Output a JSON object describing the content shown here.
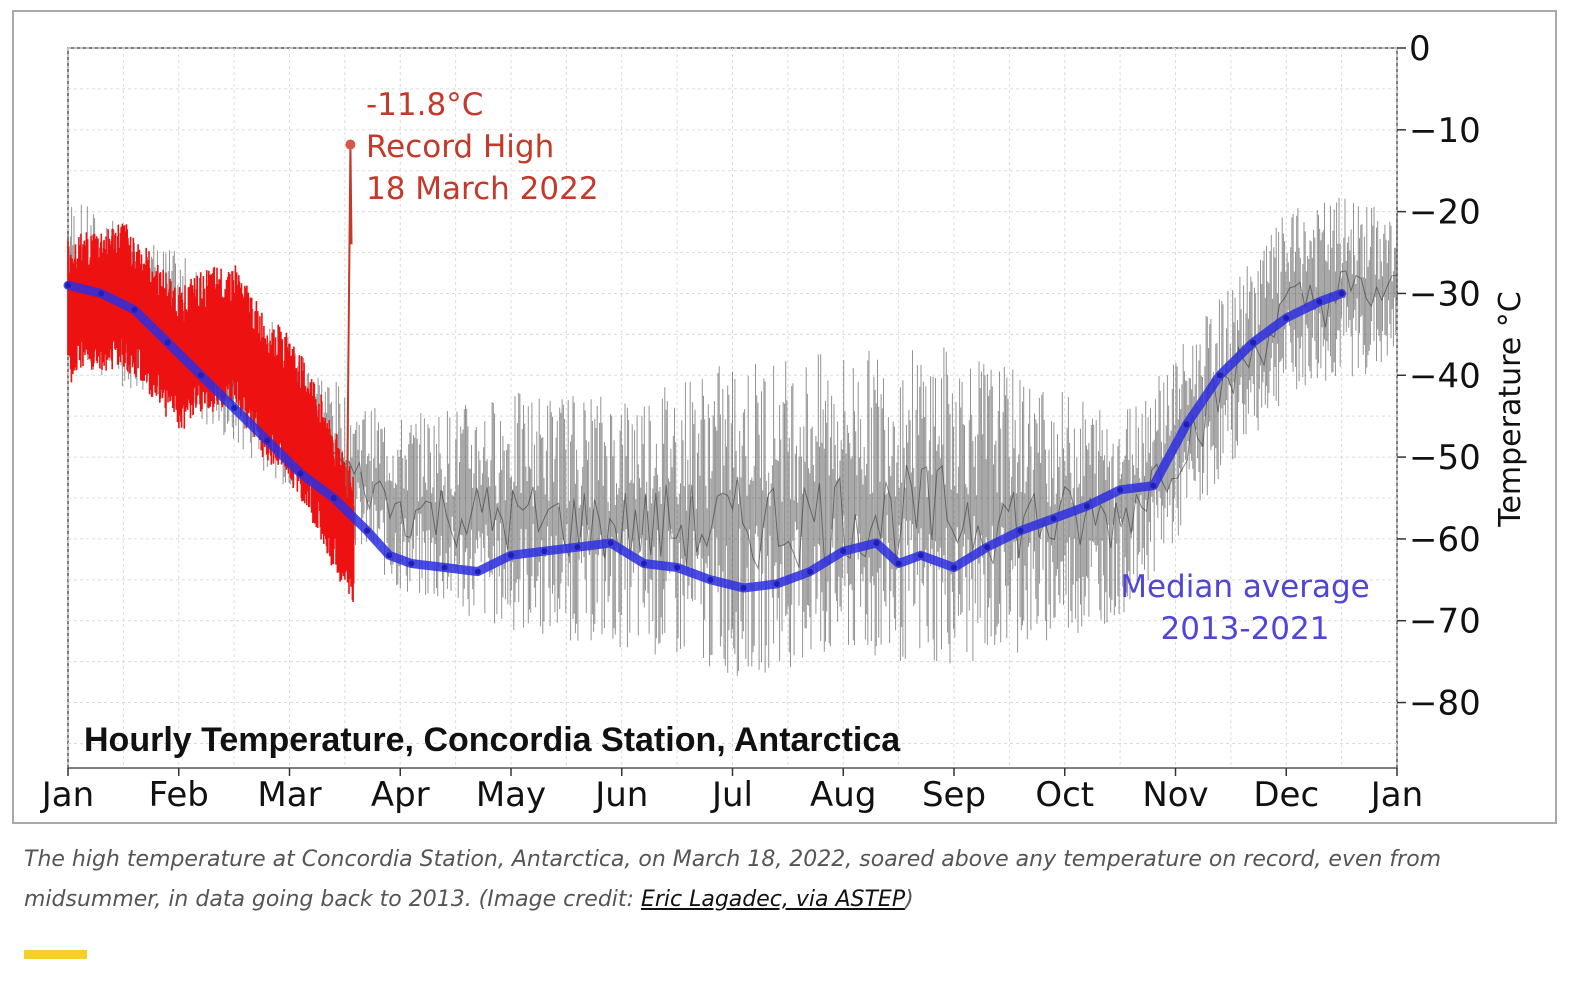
{
  "chart_data": {
    "type": "line",
    "title": "Hourly Temperature, Concordia Station, Antarctica",
    "xlabel": "",
    "ylabel": "Temperature °C",
    "x_tick_labels": [
      "Jan",
      "Feb",
      "Mar",
      "Apr",
      "May",
      "Jun",
      "Jul",
      "Aug",
      "Sep",
      "Oct",
      "Nov",
      "Dec",
      "Jan"
    ],
    "x_range_months": [
      0,
      12
    ],
    "y_tick_labels": [
      "0",
      "−10",
      "−20",
      "−30",
      "−40",
      "−50",
      "−60",
      "−70",
      "−80"
    ],
    "y_ticks": [
      0,
      -10,
      -20,
      -30,
      -40,
      -50,
      -60,
      -70,
      -80
    ],
    "ylim": [
      -88,
      0
    ],
    "y_axis_side": "right",
    "grid": true,
    "series": [
      {
        "name": "Median average 2013-2021",
        "label_lines": [
          "Median average",
          "2013-2021"
        ],
        "color": "#2c2ee0",
        "x_months": [
          0,
          0.3,
          0.6,
          0.9,
          1.2,
          1.5,
          1.8,
          2.1,
          2.4,
          2.7,
          2.9,
          3.1,
          3.4,
          3.7,
          4.0,
          4.3,
          4.6,
          4.9,
          5.2,
          5.5,
          5.8,
          6.1,
          6.4,
          6.7,
          7.0,
          7.3,
          7.5,
          7.7,
          8.0,
          8.3,
          8.6,
          8.9,
          9.2,
          9.5,
          9.8,
          10.1,
          10.4,
          10.7,
          11.0,
          11.3,
          11.5
        ],
        "values": [
          -29,
          -30,
          -32,
          -36,
          -40,
          -44,
          -48,
          -52,
          -55,
          -59,
          -62,
          -63,
          -63.5,
          -64,
          -62,
          -61.5,
          -61,
          -60.5,
          -63,
          -63.5,
          -65,
          -66,
          -65.5,
          -64,
          -61.5,
          -60.5,
          -63,
          -62,
          -63.5,
          -61,
          -59,
          -57.5,
          -56,
          -54,
          -53.5,
          -46,
          -40,
          -36,
          -33,
          -31,
          -30
        ]
      },
      {
        "name": "2022",
        "color": "#ee1111",
        "x_months": [
          0,
          0.25,
          0.5,
          0.75,
          1.0,
          1.25,
          1.5,
          1.75,
          2.0,
          2.25,
          2.4,
          2.5,
          2.58
        ],
        "values": [
          -32,
          -31,
          -30,
          -34,
          -38,
          -36,
          -35,
          -41,
          -44,
          -50,
          -55,
          -58,
          -61
        ],
        "record": {
          "x_month": 2.55,
          "value": -11.8
        }
      }
    ],
    "hourly_band": {
      "color": "#3a3a3a",
      "x_months": [
        0,
        1,
        2,
        2.6,
        3,
        4,
        5,
        6,
        7,
        8,
        9,
        9.5,
        10,
        10.5,
        11,
        11.5,
        12
      ],
      "low": [
        -40,
        -45,
        -55,
        -62,
        -68,
        -73,
        -75,
        -79,
        -77,
        -78,
        -74,
        -71,
        -62,
        -52,
        -44,
        -42,
        -40
      ],
      "high": [
        -18,
        -25,
        -35,
        -43,
        -45,
        -42,
        -42,
        -38,
        -37,
        -36,
        -42,
        -44,
        -37,
        -29,
        -20,
        -18,
        -20
      ]
    },
    "annotations": [
      {
        "lines": [
          "-11.8°C",
          "Record High",
          "18 March 2022"
        ],
        "color": "#c33a2a"
      }
    ]
  },
  "caption": {
    "text": "The high temperature at Concordia Station, Antarctica, on March 18, 2022, soared above any temperature on record, even from midsummer, in data going back to 2013. (Image credit: ",
    "link_text": "Eric Lagadec, via ASTEP",
    "suffix": ")"
  },
  "colors": {
    "accent_bar": "#f6cf2b"
  }
}
